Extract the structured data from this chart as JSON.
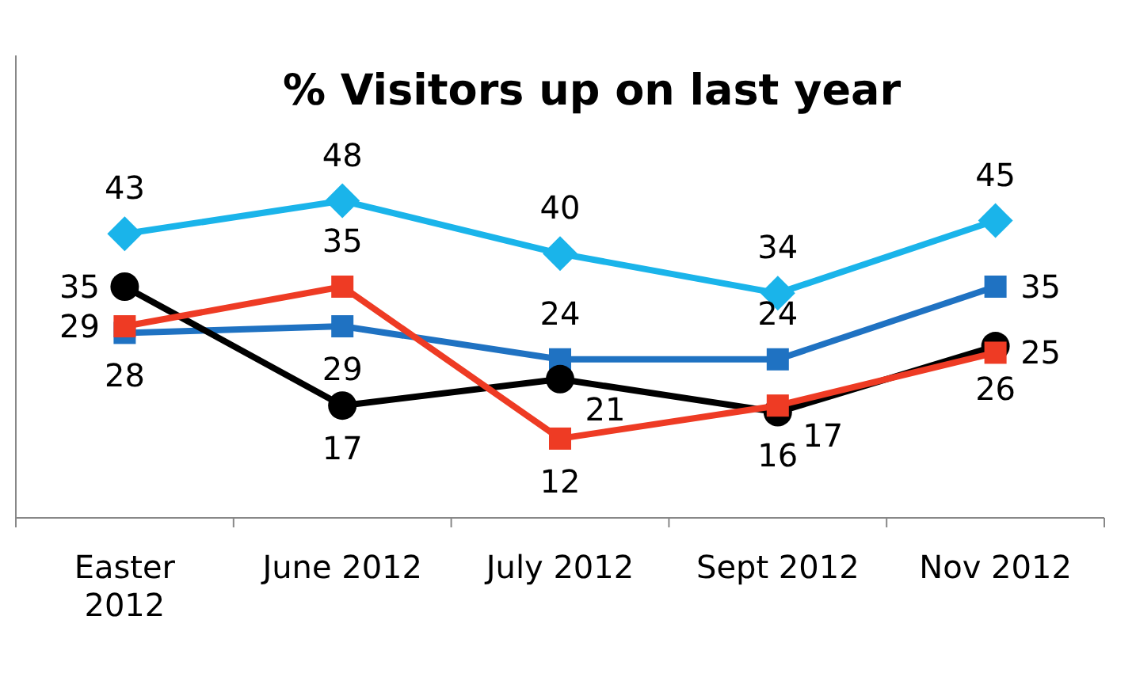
{
  "chart_data": {
    "type": "line",
    "title": "% Visitors up on last year",
    "categories": [
      "Easter 2012",
      "June 2012",
      "July 2012",
      "Sept 2012",
      "Nov 2012"
    ],
    "series": [
      {
        "color": "#1ab4ea",
        "marker": "diamond",
        "values": [
          43,
          48,
          40,
          34,
          45
        ]
      },
      {
        "color": "#1f72c2",
        "marker": "square",
        "values": [
          28,
          29,
          24,
          24,
          35
        ]
      },
      {
        "color": "#000000",
        "marker": "circle",
        "values": [
          35,
          17,
          21,
          16,
          26
        ]
      },
      {
        "color": "#ee3b24",
        "marker": "square",
        "values": [
          29,
          35,
          12,
          17,
          25
        ]
      }
    ],
    "ylim": [
      0,
      70
    ],
    "tick_labels": "x",
    "data_labels": true,
    "line_style": "solid"
  }
}
